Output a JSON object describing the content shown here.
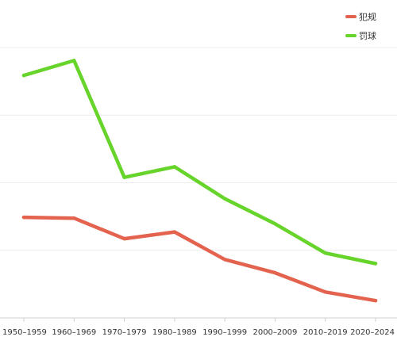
{
  "chart_data": {
    "type": "line",
    "categories": [
      "1950–1959",
      "1960–1969",
      "1970–1979",
      "1980–1989",
      "1990–1999",
      "2000–2009",
      "2010–2019",
      "2020–2024"
    ],
    "series": [
      {
        "name": "犯规",
        "color": "#e4634f",
        "values": [
          37.2,
          36.9,
          29.3,
          31.8,
          21.6,
          16.7,
          9.6,
          6.4
        ]
      },
      {
        "name": "罚球",
        "color": "#66d42a",
        "values": [
          89.7,
          95.2,
          52.0,
          55.9,
          44.1,
          34.8,
          24.0,
          20.1
        ]
      }
    ],
    "ylim": [
      0,
      100
    ],
    "grid": true,
    "legend": "top-right"
  }
}
